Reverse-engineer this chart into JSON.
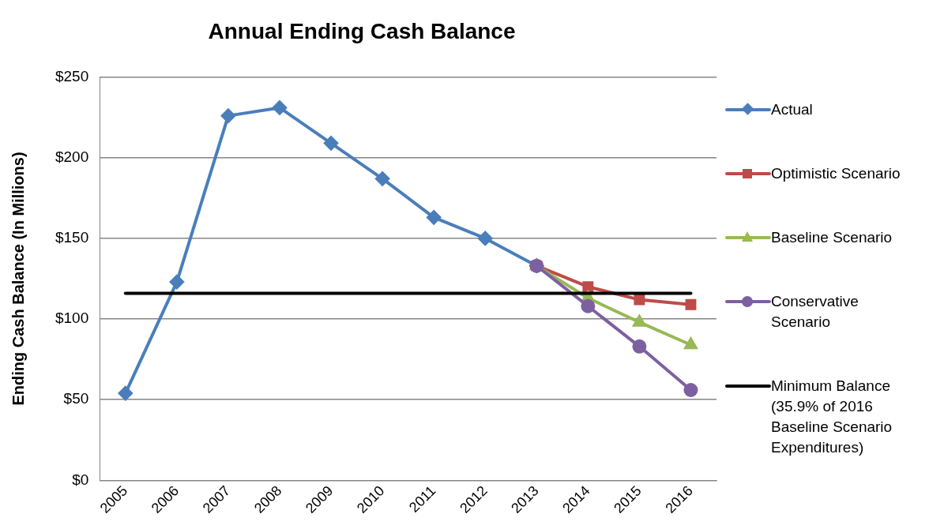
{
  "chart_data": {
    "type": "line",
    "title": "Annual Ending Cash Balance",
    "ylabel": "Ending Cash Balance (In Millions)",
    "categories": [
      "2005",
      "2006",
      "2007",
      "2008",
      "2009",
      "2010",
      "2011",
      "2012",
      "2013",
      "2014",
      "2015",
      "2016"
    ],
    "series": [
      {
        "name": "Actual",
        "color": "#4a7ebb",
        "marker": "diamond",
        "values": [
          54,
          123,
          226,
          231,
          209,
          187,
          163,
          150,
          133,
          null,
          null,
          null
        ]
      },
      {
        "name": "Optimistic Scenario",
        "color": "#be4b48",
        "marker": "square",
        "values": [
          null,
          null,
          null,
          null,
          null,
          null,
          null,
          null,
          133,
          120,
          112,
          109
        ]
      },
      {
        "name": "Baseline Scenario",
        "color": "#98b954",
        "marker": "triangle",
        "values": [
          null,
          null,
          null,
          null,
          null,
          null,
          null,
          null,
          133,
          113,
          98,
          84
        ]
      },
      {
        "name": "Conservative Scenario",
        "color": "#7d60a0",
        "marker": "circle",
        "values": [
          null,
          null,
          null,
          null,
          null,
          null,
          null,
          null,
          133,
          108,
          83,
          56
        ]
      },
      {
        "name": "Minimum Balance (35.9% of 2016 Baseline Scenario Expenditures)",
        "color": "#000000",
        "marker": "none",
        "values": [
          116,
          116,
          116,
          116,
          116,
          116,
          116,
          116,
          116,
          116,
          116,
          116
        ]
      }
    ],
    "ylim": [
      0,
      250
    ],
    "yticks": [
      {
        "value": 0,
        "label": "$0"
      },
      {
        "value": 50,
        "label": "$50"
      },
      {
        "value": 100,
        "label": "$100"
      },
      {
        "value": 150,
        "label": "$150"
      },
      {
        "value": 200,
        "label": "$200"
      },
      {
        "value": 250,
        "label": "$250"
      }
    ],
    "grid": "y",
    "legend": "right"
  }
}
